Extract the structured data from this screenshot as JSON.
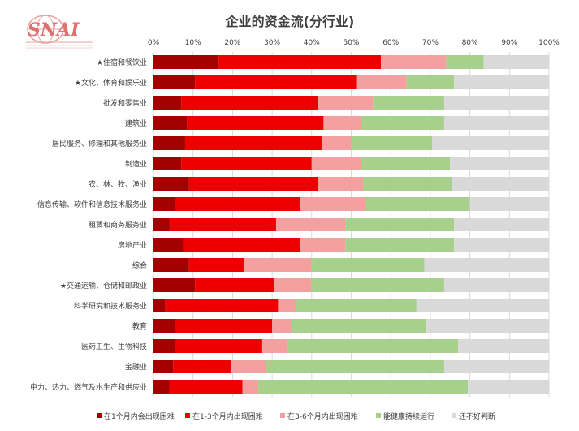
{
  "logo": {
    "text": "SNAI"
  },
  "chart_data": {
    "type": "bar",
    "orientation": "horizontal",
    "stacked": true,
    "percent": true,
    "title": "企业的资金流(分行业)",
    "xlim": [
      0,
      100
    ],
    "grid": true,
    "legend_position": "bottom",
    "x_ticks": [
      "0%",
      "10%",
      "20%",
      "30%",
      "40%",
      "50%",
      "60%",
      "70%",
      "80%",
      "90%",
      "100%"
    ],
    "categories": [
      "★住宿和餐饮业",
      "★文化、体育和娱乐业",
      "批发和零售业",
      "建筑业",
      "居民服务、修理和其他服务业",
      "制造业",
      "农、林、牧、渔业",
      "信息传输、软件和信息技术服务业",
      "租赁和商务服务业",
      "房地产业",
      "综合",
      "★交通运输、仓储和邮政业",
      "科学研究和技术服务业",
      "教育",
      "医药卫生、生物科技",
      "金融业",
      "电力、热力、燃气及水生产和供应业"
    ],
    "series": [
      {
        "name": "在1个月内会出现困难",
        "color": "#a50000",
        "values": [
          16.5,
          10.5,
          7,
          8.5,
          8,
          7,
          9,
          5.5,
          4,
          7.5,
          9,
          10.5,
          3,
          5.5,
          5.5,
          5,
          4
        ]
      },
      {
        "name": "在1-3个月内出现困难",
        "color": "#ee0000",
        "values": [
          41,
          41,
          34.5,
          34.5,
          34.5,
          33,
          32.5,
          31.5,
          27,
          29.5,
          14,
          20,
          28.5,
          24.5,
          22,
          14.5,
          18.5
        ]
      },
      {
        "name": "在3-6个月内出现困难",
        "color": "#f4a0a0",
        "values": [
          16.5,
          12.5,
          14,
          9.5,
          7.5,
          12.5,
          11.5,
          16.5,
          17.5,
          11.5,
          17,
          9.5,
          4.5,
          5,
          6.5,
          9,
          4
        ]
      },
      {
        "name": "能健康持续运行",
        "color": "#a8d08d",
        "values": [
          9.5,
          12,
          18,
          21,
          20.5,
          22.5,
          22.5,
          26.5,
          27.5,
          27.5,
          28.5,
          33.5,
          30.5,
          34,
          43,
          45,
          53
        ]
      },
      {
        "name": "还不好判断",
        "color": "#d9d9d9",
        "values": [
          16.5,
          24,
          26.5,
          26.5,
          29.5,
          25,
          24.5,
          20,
          24,
          24,
          31.5,
          26.5,
          33.5,
          31,
          23,
          26.5,
          20.5
        ]
      }
    ]
  }
}
